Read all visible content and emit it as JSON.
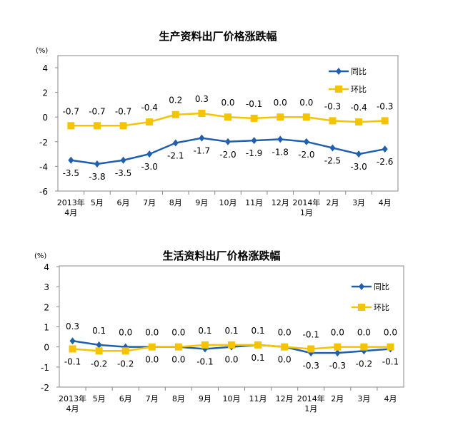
{
  "colors": {
    "yoy": "#1f5fae",
    "mom": "#f5c400",
    "frame": "#888888"
  },
  "chart_data": [
    {
      "type": "line",
      "title": "生产资料出厂价格涨跌幅",
      "ylabel": "(%)",
      "ylim": [
        -6,
        4
      ],
      "yticks": [
        4,
        2,
        0,
        -2,
        -4,
        -6
      ],
      "categories": [
        "2013年\n4月",
        "5月",
        "6月",
        "7月",
        "8月",
        "9月",
        "10月",
        "11月",
        "12月",
        "2014年\n1月",
        "2月",
        "3月",
        "4月"
      ],
      "legend_position": "top-right",
      "series": [
        {
          "name": "同比",
          "marker": "diamond",
          "values": [
            -3.5,
            -3.8,
            -3.5,
            -3.0,
            -2.1,
            -1.7,
            -2.0,
            -1.9,
            -1.8,
            -2.0,
            -2.5,
            -3.0,
            -2.6
          ]
        },
        {
          "name": "环比",
          "marker": "square",
          "values": [
            -0.7,
            -0.7,
            -0.7,
            -0.4,
            0.2,
            0.3,
            0.0,
            -0.1,
            0.0,
            0.0,
            -0.3,
            -0.4,
            -0.3
          ]
        }
      ]
    },
    {
      "type": "line",
      "title": "生活资料出厂价格涨跌幅",
      "ylabel": "(%)",
      "ylim": [
        -2,
        4
      ],
      "yticks": [
        4,
        3,
        2,
        1,
        0,
        -1,
        -2
      ],
      "categories": [
        "2013年\n4月",
        "5月",
        "6月",
        "7月",
        "8月",
        "9月",
        "10月",
        "11月",
        "12月",
        "2014年\n1月",
        "2月",
        "3月",
        "4月"
      ],
      "legend_position": "top-right",
      "series": [
        {
          "name": "同比",
          "marker": "diamond",
          "values": [
            0.3,
            0.1,
            0.0,
            0.0,
            0.0,
            -0.1,
            0.0,
            0.1,
            0.0,
            -0.3,
            -0.3,
            -0.2,
            -0.1
          ]
        },
        {
          "name": "环比",
          "marker": "square",
          "values": [
            -0.1,
            -0.2,
            -0.2,
            0.0,
            0.0,
            0.1,
            0.1,
            0.1,
            0.0,
            -0.1,
            0.0,
            0.0,
            0.0
          ]
        }
      ]
    }
  ]
}
